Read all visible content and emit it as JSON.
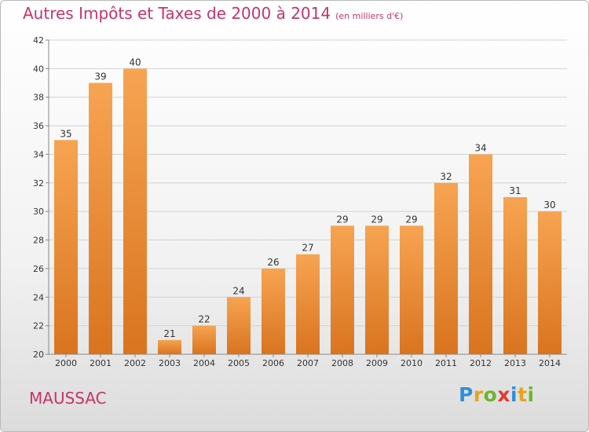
{
  "title": "Autres Impôts et Taxes de 2000 à 2014",
  "subtitle": "(en milliers d'€)",
  "place": "MAUSSAC",
  "logo": {
    "letters": [
      "P",
      "r",
      "o",
      "x",
      "i",
      "t",
      "i"
    ],
    "colors": [
      "#2f8fd4",
      "#e8a21c",
      "#6cb52c",
      "#e33b2f",
      "#2f8fd4",
      "#e8a21c",
      "#6cb52c"
    ]
  },
  "colors": {
    "title": "#c8336a",
    "bar_top": "#f7a452",
    "bar_bottom": "#d9741f",
    "grid": "#d2d2d2",
    "text": "#333333"
  },
  "chart_data": {
    "type": "bar",
    "categories": [
      "2000",
      "2001",
      "2002",
      "2003",
      "2004",
      "2005",
      "2006",
      "2007",
      "2008",
      "2009",
      "2010",
      "2011",
      "2012",
      "2013",
      "2014"
    ],
    "values": [
      35,
      39,
      40,
      21,
      22,
      24,
      26,
      27,
      29,
      29,
      29,
      32,
      34,
      31,
      30
    ],
    "data_labels": [
      "35",
      "39",
      "40",
      "21",
      "22",
      "24",
      "26",
      "27",
      "29",
      "29",
      "29",
      "32",
      "34",
      "31",
      "30"
    ],
    "yticks": [
      20,
      22,
      24,
      26,
      28,
      30,
      32,
      34,
      36,
      38,
      40,
      42
    ],
    "ylim": [
      20,
      42
    ],
    "grid": true,
    "xlabel": "",
    "ylabel": ""
  }
}
